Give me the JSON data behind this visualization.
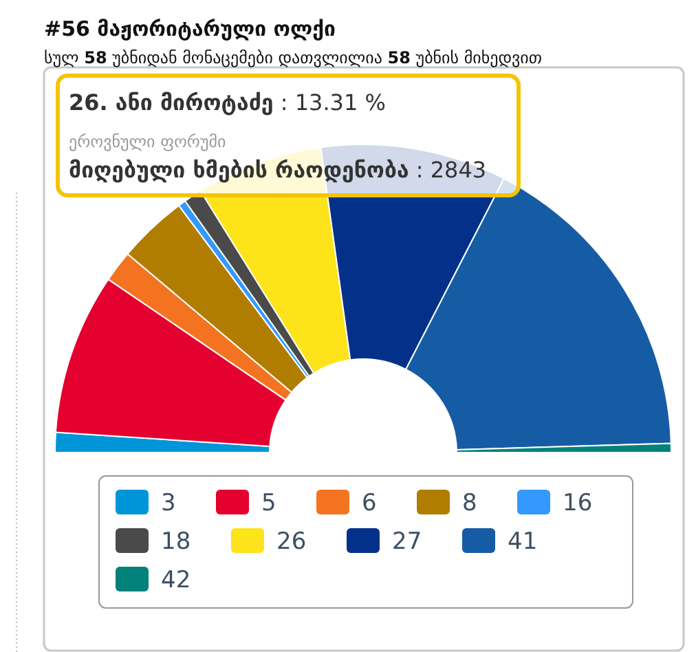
{
  "chart_data": {
    "type": "donut",
    "title": "#56 მაჟორიტარული ოლქი",
    "subtitle": "სულ 58 უბნიდან მონაცემები დათვლილია 58 უბნის მიხედვით",
    "categories": [
      "3",
      "5",
      "6",
      "8",
      "16",
      "18",
      "26",
      "27",
      "41",
      "42"
    ],
    "values": [
      2.1,
      16.9,
      3.3,
      7.3,
      0.8,
      1.9,
      13.31,
      19.5,
      33.94,
      0.95
    ],
    "colors": [
      "#0095d9",
      "#e4002f",
      "#f47321",
      "#b07d00",
      "#3399ff",
      "#4a4a4a",
      "#fde31a",
      "#03318a",
      "#165ca5",
      "#03827c"
    ],
    "annotations": [
      "26. ანი მიროტაძე : 13.31 %",
      "ეროვნული ფორუმი",
      "მიღებული ხმების რაოდენობა : 2843"
    ],
    "legend": "bottom"
  }
}
